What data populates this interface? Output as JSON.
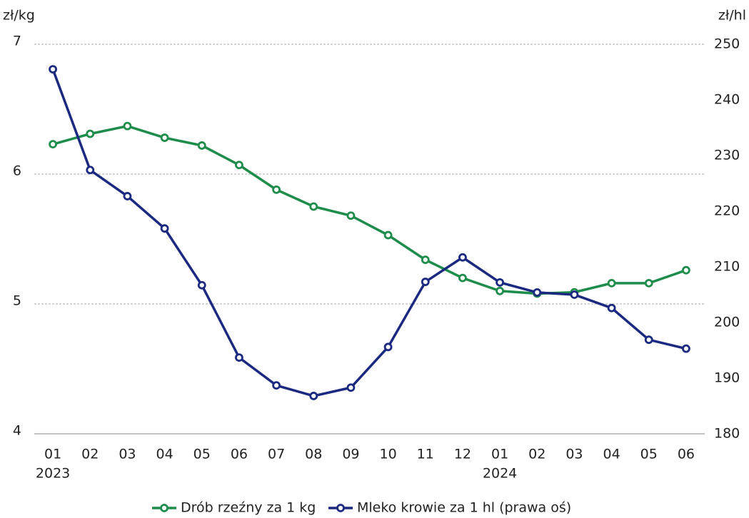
{
  "chart_data": {
    "type": "line",
    "y_label": "zł/kg",
    "y2_label": "zł/hl",
    "categories": [
      "01",
      "02",
      "03",
      "04",
      "05",
      "06",
      "07",
      "08",
      "09",
      "10",
      "11",
      "12",
      "01",
      "02",
      "03",
      "04",
      "05",
      "06"
    ],
    "x_sublabels": [
      "2023",
      null,
      null,
      null,
      null,
      null,
      null,
      null,
      null,
      null,
      null,
      null,
      "2024",
      null,
      null,
      null,
      null,
      null
    ],
    "series": [
      {
        "name": "Drób rzeźny za 1 kg",
        "color": "#1e8c4a",
        "axis": "y",
        "values": [
          6.23,
          6.31,
          6.37,
          6.28,
          6.22,
          6.07,
          5.88,
          5.75,
          5.68,
          5.53,
          5.34,
          5.2,
          5.1,
          5.08,
          5.09,
          5.16,
          5.16,
          5.26
        ]
      },
      {
        "name": "Mleko krowie za 1 hl (prawa oś)",
        "color": "#1b2a80",
        "axis": "y2",
        "values": [
          245.5,
          227.4,
          222.7,
          216.9,
          206.7,
          193.7,
          188.7,
          186.8,
          188.3,
          195.6,
          207.3,
          211.7,
          207.2,
          205.4,
          205.0,
          202.6,
          196.9,
          195.3
        ]
      }
    ],
    "ylim": [
      4,
      7
    ],
    "yticks": [
      4,
      5,
      6,
      7
    ],
    "y2lim": [
      180,
      250
    ],
    "y2ticks": [
      180,
      190,
      200,
      210,
      220,
      230,
      240,
      250
    ],
    "grid": true,
    "legend": "bottom"
  }
}
